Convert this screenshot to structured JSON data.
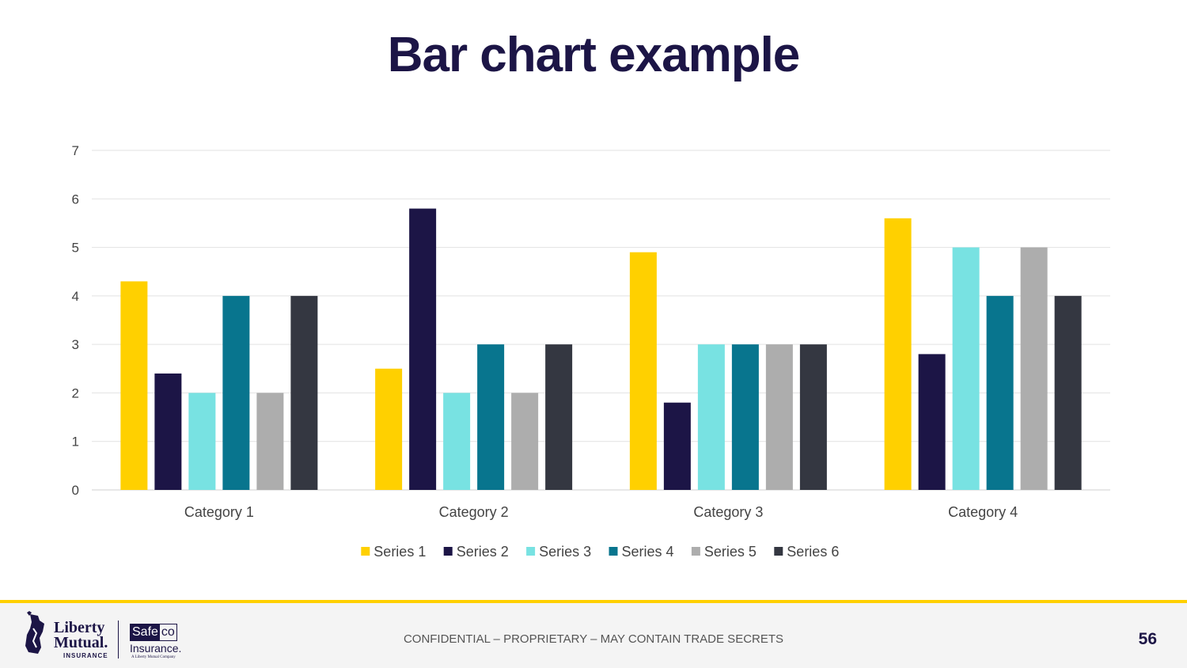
{
  "slide": {
    "title": "Bar chart example",
    "footer_text": "CONFIDENTIAL – PROPRIETARY – MAY CONTAIN TRADE SECRETS",
    "page_number": "56"
  },
  "branding": {
    "liberty_line1": "Liberty",
    "liberty_line2": "Mutual.",
    "liberty_line3": "INSURANCE",
    "safeco_a": "Safe",
    "safeco_b": "co",
    "safeco_insurance": "Insurance.",
    "safeco_sub": "A Liberty Mutual Company",
    "accent": "#ffd000",
    "navy": "#1c1546"
  },
  "chart_data": {
    "type": "bar",
    "title": "",
    "xlabel": "",
    "ylabel": "",
    "ylim": [
      0,
      7
    ],
    "yticks": [
      0,
      1,
      2,
      3,
      4,
      5,
      6,
      7
    ],
    "grid": true,
    "legend_position": "bottom",
    "categories": [
      "Category 1",
      "Category 2",
      "Category 3",
      "Category 4"
    ],
    "series": [
      {
        "name": "Series 1",
        "color": "#ffd000",
        "values": [
          4.3,
          2.5,
          4.9,
          5.6
        ]
      },
      {
        "name": "Series 2",
        "color": "#1c1546",
        "values": [
          2.4,
          5.8,
          1.8,
          2.8
        ]
      },
      {
        "name": "Series 3",
        "color": "#78e2e2",
        "values": [
          2,
          2,
          3,
          5
        ]
      },
      {
        "name": "Series 4",
        "color": "#08758e",
        "values": [
          4,
          3,
          3,
          4
        ]
      },
      {
        "name": "Series 5",
        "color": "#adadad",
        "values": [
          2,
          2,
          3,
          5
        ]
      },
      {
        "name": "Series 6",
        "color": "#343741",
        "values": [
          4,
          3,
          3,
          4
        ]
      }
    ]
  }
}
